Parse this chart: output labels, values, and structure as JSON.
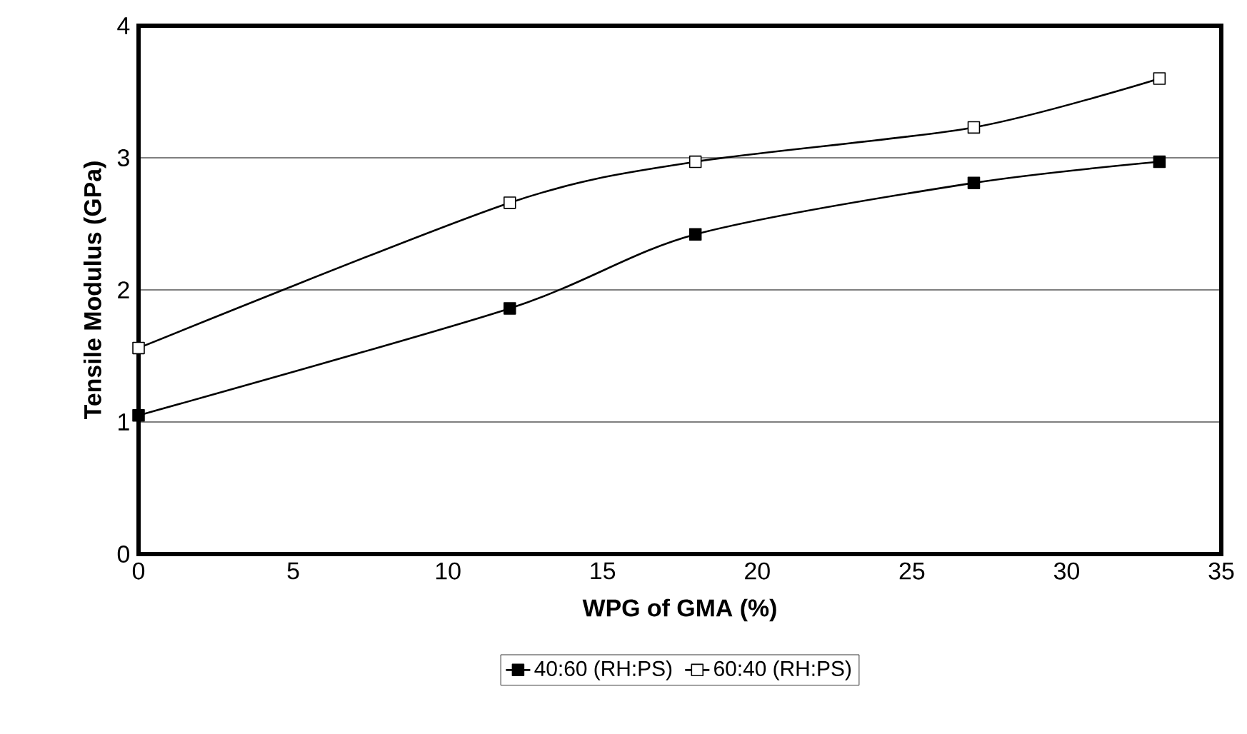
{
  "chart_data": {
    "type": "line",
    "xlabel": "WPG of GMA (%)",
    "ylabel": "Tensile Modulus (GPa)",
    "x": [
      0,
      12,
      18,
      27,
      33
    ],
    "series": [
      {
        "name": "40:60 (RH:PS)",
        "color": "#000000",
        "values": [
          1.05,
          1.86,
          2.42,
          2.81,
          2.97
        ]
      },
      {
        "name": "60:40 (RH:PS)",
        "color": "#000000",
        "values": [
          1.56,
          2.66,
          2.97,
          3.23,
          3.6
        ]
      }
    ],
    "xlim": [
      0,
      35
    ],
    "ylim": [
      0,
      4
    ],
    "xticks": [
      0,
      5,
      10,
      15,
      20,
      25,
      30,
      35
    ],
    "yticks": [
      0,
      1,
      2,
      3,
      4
    ],
    "grid": "y",
    "legend": "bottom",
    "marker": "square",
    "line_style": "solid"
  }
}
